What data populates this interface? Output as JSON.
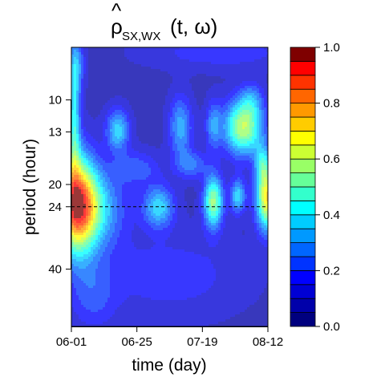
{
  "chart_data": {
    "type": "heatmap",
    "title": {
      "hat_symbol": "ρ",
      "subscript": "SX,WX",
      "args": "(t, ω)"
    },
    "xlabel": "time (day)",
    "ylabel": "period (hour)",
    "x_ticks": [
      "06-01",
      "06-25",
      "07-19",
      "08-12"
    ],
    "x_range_days": [
      0,
      72
    ],
    "y_ticks": [
      10,
      13,
      20,
      24,
      40
    ],
    "y_range": [
      6.5,
      64
    ],
    "y_scale": "log",
    "reference_line": {
      "period": 24,
      "style": "dashed"
    },
    "colorbar": {
      "min": 0.0,
      "max": 1.0,
      "ticks": [
        "0.0",
        "0.2",
        "0.4",
        "0.6",
        "0.8",
        "1.0"
      ],
      "levels": 20,
      "colors": [
        "#00007F",
        "#0000AA",
        "#0000D4",
        "#0000FF",
        "#0033FF",
        "#0066FF",
        "#0099FF",
        "#00CCFF",
        "#00FFFF",
        "#33FFCC",
        "#66FF99",
        "#99FF66",
        "#CCFF33",
        "#FFFF00",
        "#FFCC00",
        "#FF9900",
        "#FF6600",
        "#FF3300",
        "#FF0000",
        "#7F0000"
      ]
    },
    "background_level": 0.08,
    "blobs": [
      {
        "t": 2,
        "period": 23.5,
        "st": 5,
        "sp": 0.28,
        "amp": 0.8
      },
      {
        "t": 10,
        "period": 24.5,
        "st": 7,
        "sp": 0.22,
        "amp": 0.25
      },
      {
        "t": 1,
        "period": 11.5,
        "st": 1.6,
        "sp": 0.35,
        "amp": 0.32
      },
      {
        "t": 17,
        "period": 12.8,
        "st": 3,
        "sp": 0.12,
        "amp": 0.3
      },
      {
        "t": 40,
        "period": 12.5,
        "st": 3,
        "sp": 0.18,
        "amp": 0.25
      },
      {
        "t": 52,
        "period": 12.3,
        "st": 2,
        "sp": 0.14,
        "amp": 0.2
      },
      {
        "t": 63,
        "period": 12.5,
        "st": 5,
        "sp": 0.16,
        "amp": 0.52
      },
      {
        "t": 66,
        "period": 10.0,
        "st": 3,
        "sp": 0.1,
        "amp": 0.15
      },
      {
        "t": 32,
        "period": 24.0,
        "st": 4,
        "sp": 0.12,
        "amp": 0.3
      },
      {
        "t": 52,
        "period": 23.0,
        "st": 2.5,
        "sp": 0.15,
        "amp": 0.48
      },
      {
        "t": 61,
        "period": 22.0,
        "st": 2,
        "sp": 0.1,
        "amp": 0.3
      },
      {
        "t": 72,
        "period": 22.5,
        "st": 3,
        "sp": 0.18,
        "amp": 0.62
      },
      {
        "t": 44,
        "period": 17.0,
        "st": 4,
        "sp": 0.08,
        "amp": 0.18
      },
      {
        "t": 24,
        "period": 17.5,
        "st": 6,
        "sp": 0.1,
        "amp": 0.15
      },
      {
        "t": 70,
        "period": 17.0,
        "st": 2,
        "sp": 0.12,
        "amp": 0.25
      },
      {
        "t": 36,
        "period": 42.0,
        "st": 20,
        "sp": 0.25,
        "amp": 0.1
      },
      {
        "t": 8,
        "period": 50.0,
        "st": 6,
        "sp": 0.2,
        "amp": 0.12
      },
      {
        "t": 2,
        "period": 7.5,
        "st": 2,
        "sp": 0.15,
        "amp": 0.18
      },
      {
        "t": 55,
        "period": 6.8,
        "st": 20,
        "sp": 0.1,
        "amp": 0.1
      }
    ]
  }
}
